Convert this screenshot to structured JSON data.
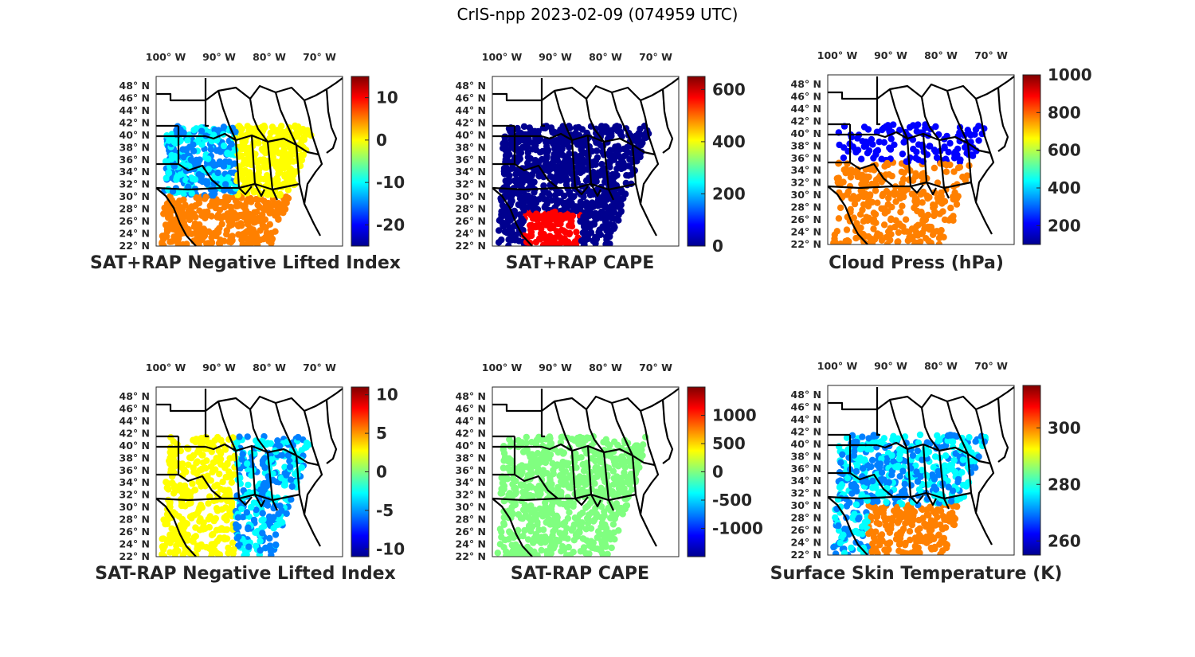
{
  "title": "CrIS-npp 2023-02-09 (074959 UTC)",
  "colors": {
    "jet": [
      "#00008f",
      "#0000ff",
      "#0080ff",
      "#00ffff",
      "#80ff80",
      "#ffff00",
      "#ff8000",
      "#ff0000",
      "#800000"
    ],
    "map_lines": "#000000",
    "axis": "#262626"
  },
  "chart_data": [
    {
      "type": "heatmap",
      "title": "SAT+RAP Negative Lifted Index",
      "x_ticks": [
        "100° W",
        "90° W",
        "80° W",
        "70° W"
      ],
      "y_ticks": [
        "48° N",
        "46° N",
        "44° N",
        "42° N",
        "40° N",
        "38° N",
        "36° N",
        "34° N",
        "32° N",
        "30° N",
        "28° N",
        "26° N",
        "24° N",
        "22° N"
      ],
      "colorbar": {
        "ticks": [
          "10",
          "0",
          "-10",
          "-20"
        ],
        "tick_values": [
          10,
          0,
          -10,
          -20
        ],
        "range": [
          -25,
          15
        ]
      },
      "xlim": [
        -104,
        -66
      ],
      "ylim": [
        22,
        50
      ]
    },
    {
      "type": "heatmap",
      "title": "SAT+RAP CAPE",
      "x_ticks": [
        "100° W",
        "90° W",
        "80° W",
        "70° W"
      ],
      "y_ticks": [
        "48° N",
        "46° N",
        "44° N",
        "42° N",
        "40° N",
        "38° N",
        "36° N",
        "34° N",
        "32° N",
        "30° N",
        "28° N",
        "26° N",
        "24° N",
        "22° N"
      ],
      "colorbar": {
        "ticks": [
          "600",
          "400",
          "200",
          "0"
        ],
        "tick_values": [
          600,
          400,
          200,
          0
        ],
        "range": [
          0,
          650
        ]
      },
      "xlim": [
        -104,
        -66
      ],
      "ylim": [
        22,
        50
      ]
    },
    {
      "type": "heatmap",
      "title": "Cloud Press (hPa)",
      "x_ticks": [
        "100° W",
        "90° W",
        "80° W",
        "70° W"
      ],
      "y_ticks": [
        "48° N",
        "46° N",
        "44° N",
        "42° N",
        "40° N",
        "38° N",
        "36° N",
        "34° N",
        "32° N",
        "30° N",
        "28° N",
        "26° N",
        "24° N",
        "22° N"
      ],
      "colorbar": {
        "ticks": [
          "1000",
          "800",
          "600",
          "400",
          "200"
        ],
        "tick_values": [
          1000,
          800,
          600,
          400,
          200
        ],
        "range": [
          100,
          1000
        ]
      },
      "xlim": [
        -104,
        -66
      ],
      "ylim": [
        22,
        50
      ]
    },
    {
      "type": "heatmap",
      "title": "SAT-RAP Negative Lifted Index",
      "x_ticks": [
        "100° W",
        "90° W",
        "80° W",
        "70° W"
      ],
      "y_ticks": [
        "48° N",
        "46° N",
        "44° N",
        "42° N",
        "40° N",
        "38° N",
        "36° N",
        "34° N",
        "32° N",
        "30° N",
        "28° N",
        "26° N",
        "24° N",
        "22° N"
      ],
      "colorbar": {
        "ticks": [
          "10",
          "5",
          "0",
          "-5",
          "-10"
        ],
        "tick_values": [
          10,
          5,
          0,
          -5,
          -10
        ],
        "range": [
          -11,
          11
        ]
      },
      "xlim": [
        -104,
        -66
      ],
      "ylim": [
        22,
        50
      ]
    },
    {
      "type": "heatmap",
      "title": "SAT-RAP CAPE",
      "x_ticks": [
        "100° W",
        "90° W",
        "80° W",
        "70° W"
      ],
      "y_ticks": [
        "48° N",
        "46° N",
        "44° N",
        "42° N",
        "40° N",
        "38° N",
        "36° N",
        "34° N",
        "32° N",
        "30° N",
        "28° N",
        "26° N",
        "24° N",
        "22° N"
      ],
      "colorbar": {
        "ticks": [
          "1000",
          "500",
          "0",
          "-500",
          "-1000"
        ],
        "tick_values": [
          1000,
          500,
          0,
          -500,
          -1000
        ],
        "range": [
          -1500,
          1500
        ]
      },
      "xlim": [
        -104,
        -66
      ],
      "ylim": [
        22,
        50
      ]
    },
    {
      "type": "heatmap",
      "title": "Surface Skin Temperature (K)",
      "x_ticks": [
        "100° W",
        "90° W",
        "80° W",
        "70° W"
      ],
      "y_ticks": [
        "48° N",
        "46° N",
        "44° N",
        "42° N",
        "40° N",
        "38° N",
        "36° N",
        "34° N",
        "32° N",
        "30° N",
        "28° N",
        "26° N",
        "24° N",
        "22° N"
      ],
      "colorbar": {
        "ticks": [
          "300",
          "280",
          "260"
        ],
        "tick_values": [
          300,
          280,
          260
        ],
        "range": [
          255,
          315
        ]
      },
      "xlim": [
        -104,
        -66
      ],
      "ylim": [
        22,
        50
      ]
    }
  ]
}
